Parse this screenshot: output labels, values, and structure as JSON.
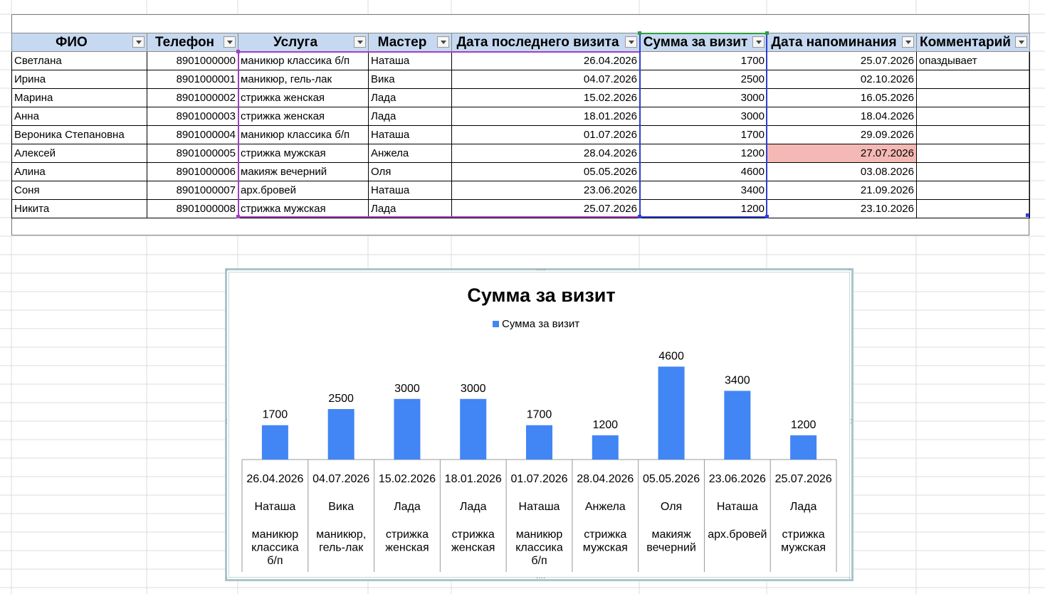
{
  "table": {
    "headers": [
      "ФИО",
      "Телефон",
      "Услуга",
      "Мастер",
      "Дата последнего визита",
      "Сумма за визит",
      "Дата напоминания",
      "Комментарий"
    ],
    "rows": [
      [
        "Светлана",
        "8901000000",
        "маникюр классика б/п",
        "Наташа",
        "26.04.2026",
        "1700",
        "25.07.2026",
        "опаздывает"
      ],
      [
        "Ирина",
        "8901000001",
        "маникюр, гель-лак",
        "Вика",
        "04.07.2026",
        "2500",
        "02.10.2026",
        ""
      ],
      [
        "Марина",
        "8901000002",
        "стрижка женская",
        "Лада",
        "15.02.2026",
        "3000",
        "16.05.2026",
        ""
      ],
      [
        "Анна",
        "8901000003",
        "стрижка женская",
        "Лада",
        "18.01.2026",
        "3000",
        "18.04.2026",
        ""
      ],
      [
        "Вероника Степановна",
        "8901000004",
        "маникюр классика б/п",
        "Наташа",
        "01.07.2026",
        "1700",
        "29.09.2026",
        ""
      ],
      [
        "Алексей",
        "8901000005",
        "стрижка мужская",
        "Анжела",
        "28.04.2026",
        "1200",
        "27.07.2026",
        ""
      ],
      [
        "Алина",
        "8901000006",
        "макияж вечерний",
        "Оля",
        "05.05.2026",
        "4600",
        "03.08.2026",
        ""
      ],
      [
        "Соня",
        "8901000007",
        "арх.бровей",
        "Наташа",
        "23.06.2026",
        "3400",
        "21.09.2026",
        ""
      ],
      [
        "Никита",
        "8901000008",
        "стрижка мужская",
        "Лада",
        "25.07.2026",
        "1200",
        "23.10.2026",
        ""
      ]
    ],
    "highlight": {
      "row": 5,
      "col": 6,
      "color": "#f4b9b4"
    }
  },
  "colors": {
    "header_fill": "#c6d9f1",
    "bar": "#4285f4",
    "selection_purple": "#a040c0",
    "selection_blue": "#2f3fd0",
    "selection_green": "#2e9e3a"
  },
  "chart_data": {
    "type": "bar",
    "title": "Сумма за визит",
    "legend": {
      "position": "top",
      "entries": [
        "Сумма за визит"
      ]
    },
    "series": [
      {
        "name": "Сумма за визит",
        "values": [
          1700,
          2500,
          3000,
          3000,
          1700,
          1200,
          4600,
          3400,
          1200
        ]
      }
    ],
    "categories": [
      [
        "26.04.2026",
        "Наташа",
        "маникюр классика б/п"
      ],
      [
        "04.07.2026",
        "Вика",
        "маникюр, гель-лак"
      ],
      [
        "15.02.2026",
        "Лада",
        "стрижка женская"
      ],
      [
        "18.01.2026",
        "Лада",
        "стрижка женская"
      ],
      [
        "01.07.2026",
        "Наташа",
        "маникюр классика б/п"
      ],
      [
        "28.04.2026",
        "Анжела",
        "стрижка мужская"
      ],
      [
        "05.05.2026",
        "Оля",
        "макияж вечерний"
      ],
      [
        "23.06.2026",
        "Наташа",
        "арх.бровей"
      ],
      [
        "25.07.2026",
        "Лада",
        "стрижка мужская"
      ]
    ],
    "category_lines": [
      [
        [
          "26.04.2026"
        ],
        [
          "Наташа"
        ],
        [
          "маникюр",
          "классика",
          "б/п"
        ]
      ],
      [
        [
          "04.07.2026"
        ],
        [
          "Вика"
        ],
        [
          "маникюр,",
          "гель-лак"
        ]
      ],
      [
        [
          "15.02.2026"
        ],
        [
          "Лада"
        ],
        [
          "стрижка",
          "женская"
        ]
      ],
      [
        [
          "18.01.2026"
        ],
        [
          "Лада"
        ],
        [
          "стрижка",
          "женская"
        ]
      ],
      [
        [
          "01.07.2026"
        ],
        [
          "Наташа"
        ],
        [
          "маникюр",
          "классика",
          "б/п"
        ]
      ],
      [
        [
          "28.04.2026"
        ],
        [
          "Анжела"
        ],
        [
          "стрижка",
          "мужская"
        ]
      ],
      [
        [
          "05.05.2026"
        ],
        [
          "Оля"
        ],
        [
          "макияж",
          "вечерний"
        ]
      ],
      [
        [
          "23.06.2026"
        ],
        [
          "Наташа"
        ],
        [
          "арх.бровей"
        ]
      ],
      [
        [
          "25.07.2026"
        ],
        [
          "Лада"
        ],
        [
          "стрижка",
          "мужская"
        ]
      ]
    ],
    "data_labels": true,
    "grid": false
  }
}
